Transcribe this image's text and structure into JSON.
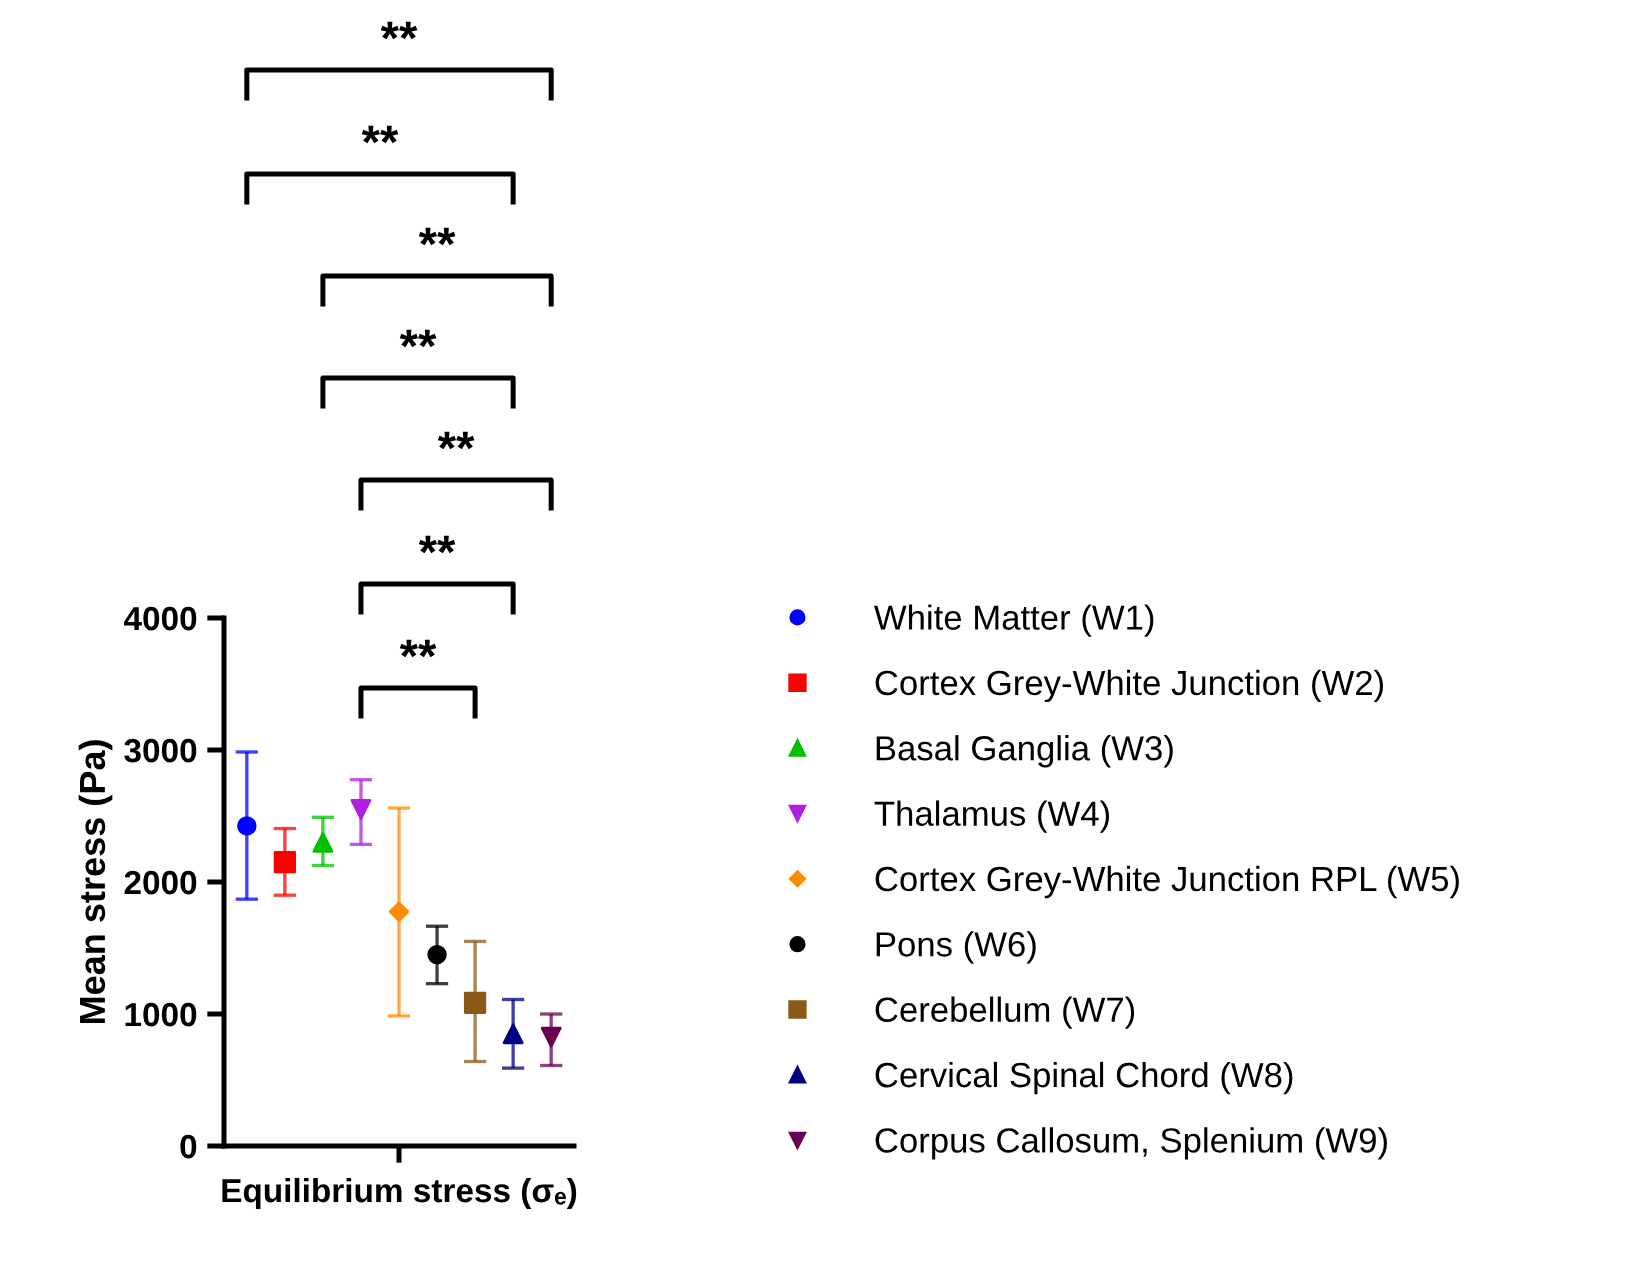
{
  "chart_data": {
    "type": "scatter",
    "xlabel": "Equilibrium stress (σₑ)",
    "ylabel": "Mean stress (Pa)",
    "categories": [
      null,
      null,
      null,
      null,
      null,
      null,
      null,
      null,
      null
    ],
    "ylim": [
      0,
      4000
    ],
    "yticks": [
      0,
      1000,
      2000,
      3000,
      4000
    ],
    "grid": false,
    "legend": "right",
    "series": [
      {
        "name": "White Matter (W1)",
        "color": "#0000ff",
        "marker": "circle",
        "values": [
          2425,
          null,
          null,
          null,
          null,
          null,
          null,
          null,
          null
        ],
        "errors": [
          [
            1870,
            2985
          ],
          null,
          null,
          null,
          null,
          null,
          null,
          null,
          null
        ]
      },
      {
        "name": "Cortex Grey-White Junction (W2)",
        "color": "#ff0000",
        "marker": "square",
        "values": [
          null,
          2150,
          null,
          null,
          null,
          null,
          null,
          null,
          null
        ],
        "errors": [
          null,
          [
            1900,
            2405
          ],
          null,
          null,
          null,
          null,
          null,
          null,
          null
        ]
      },
      {
        "name": "Basal Ganglia (W3)",
        "color": "#00c000",
        "marker": "triangle",
        "values": [
          null,
          null,
          2300,
          null,
          null,
          null,
          null,
          null,
          null
        ],
        "errors": [
          null,
          null,
          [
            2125,
            2490
          ],
          null,
          null,
          null,
          null,
          null,
          null
        ]
      },
      {
        "name": "Thalamus (W4)",
        "color": "#b020e0",
        "marker": "triangle_down",
        "values": [
          null,
          null,
          null,
          2550,
          null,
          null,
          null,
          null,
          null
        ],
        "errors": [
          null,
          null,
          null,
          [
            2285,
            2775
          ],
          null,
          null,
          null,
          null,
          null
        ]
      },
      {
        "name": "Cortex Grey-White Junction RPL (W5)",
        "color": "#ff8c00",
        "marker": "diamond",
        "values": [
          null,
          null,
          null,
          null,
          1775,
          null,
          null,
          null,
          null
        ],
        "errors": [
          null,
          null,
          null,
          null,
          [
            985,
            2560
          ],
          null,
          null,
          null,
          null
        ]
      },
      {
        "name": "Pons (W6)",
        "color": "#000000",
        "marker": "circle",
        "values": [
          null,
          null,
          null,
          null,
          null,
          1450,
          null,
          null,
          null
        ],
        "errors": [
          null,
          null,
          null,
          null,
          null,
          [
            1230,
            1665
          ],
          null,
          null,
          null
        ]
      },
      {
        "name": "Cerebellum (W7)",
        "color": "#8b5a1a",
        "marker": "square",
        "values": [
          null,
          null,
          null,
          null,
          null,
          null,
          1085,
          null,
          null
        ],
        "errors": [
          null,
          null,
          null,
          null,
          null,
          null,
          [
            640,
            1550
          ],
          null,
          null
        ]
      },
      {
        "name": "Cervical Spinal Chord (W8)",
        "color": "#000080",
        "marker": "triangle",
        "values": [
          null,
          null,
          null,
          null,
          null,
          null,
          null,
          850,
          null
        ],
        "errors": [
          null,
          null,
          null,
          null,
          null,
          null,
          null,
          [
            590,
            1110
          ],
          null
        ]
      },
      {
        "name": "Corpus Callosum, Splenium (W9)",
        "color": "#6b0050",
        "marker": "triangle_down",
        "values": [
          null,
          null,
          null,
          null,
          null,
          null,
          null,
          null,
          825
        ],
        "errors": [
          null,
          null,
          null,
          null,
          null,
          null,
          null,
          null,
          [
            610,
            1000
          ]
        ]
      }
    ],
    "annotations": [
      "**",
      "**",
      "**",
      "**",
      "**",
      "**",
      "**"
    ]
  }
}
